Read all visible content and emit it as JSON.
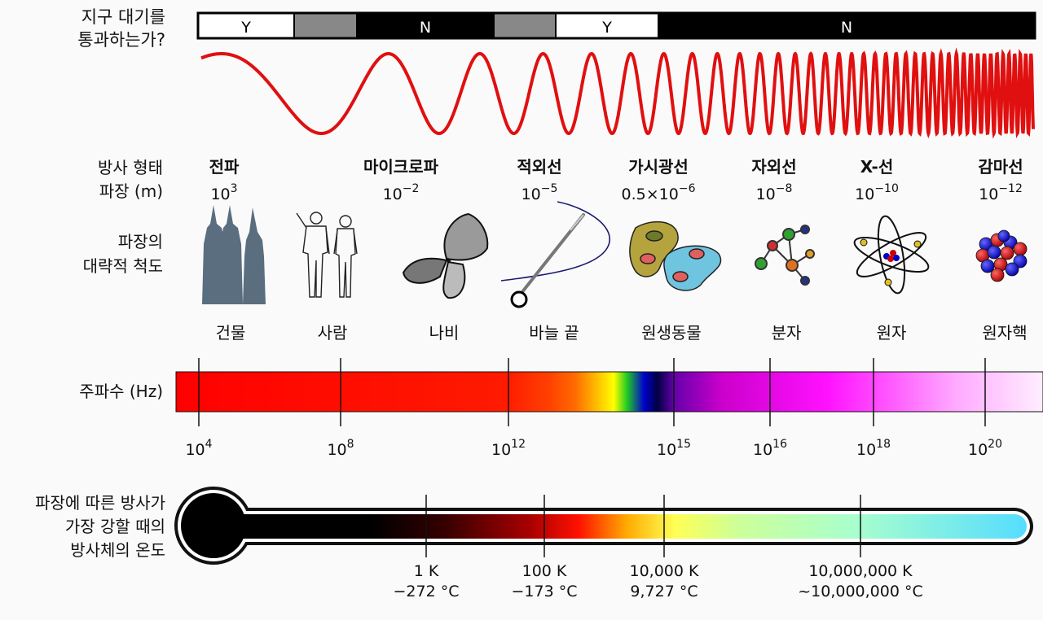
{
  "atmosphere": {
    "label_line1": "지구 대기를",
    "label_line2": "통과하는가?",
    "segments": [
      {
        "label": "Y",
        "fill": "#ffffff",
        "text": "#000000"
      },
      {
        "label": "",
        "fill": "#888888",
        "text": "#000000"
      },
      {
        "label": "N",
        "fill": "#000000",
        "text": "#ffffff"
      },
      {
        "label": "",
        "fill": "#888888",
        "text": "#000000"
      },
      {
        "label": "Y",
        "fill": "#ffffff",
        "text": "#000000"
      },
      {
        "label": "N",
        "fill": "#000000",
        "text": "#ffffff"
      }
    ]
  },
  "wave": {
    "color": "#e01010"
  },
  "radiation": {
    "label_type": "방사 형태",
    "label_wavelength": "파장 (m)",
    "types": [
      {
        "name": "전파",
        "base": "10",
        "exp": "3"
      },
      {
        "name": "마이크로파",
        "base": "10",
        "exp": "−2"
      },
      {
        "name": "적외선",
        "base": "10",
        "exp": "−5"
      },
      {
        "name": "가시광선",
        "base": "0.5×10",
        "exp": "−6"
      },
      {
        "name": "자외선",
        "base": "10",
        "exp": "−8"
      },
      {
        "name": "X-선",
        "base": "10",
        "exp": "−10"
      },
      {
        "name": "감마선",
        "base": "10",
        "exp": "−12"
      }
    ]
  },
  "scale": {
    "label_line1": "파장의",
    "label_line2": "대략적 척도",
    "items": [
      {
        "label": "건물",
        "icon": "building-icon"
      },
      {
        "label": "사람",
        "icon": "humans-icon"
      },
      {
        "label": "나비",
        "icon": "butterfly-icon"
      },
      {
        "label": "바늘 끝",
        "icon": "needle-icon"
      },
      {
        "label": "원생동물",
        "icon": "protozoa-icon"
      },
      {
        "label": "분자",
        "icon": "molecule-icon"
      },
      {
        "label": "원자",
        "icon": "atom-icon"
      },
      {
        "label": "원자핵",
        "icon": "nucleus-icon"
      }
    ]
  },
  "frequency": {
    "label": "주파수 (Hz)",
    "ticks": [
      {
        "base": "10",
        "exp": "4"
      },
      {
        "base": "10",
        "exp": "8"
      },
      {
        "base": "10",
        "exp": "12"
      },
      {
        "base": "10",
        "exp": "15"
      },
      {
        "base": "10",
        "exp": "16"
      },
      {
        "base": "10",
        "exp": "18"
      },
      {
        "base": "10",
        "exp": "20"
      }
    ]
  },
  "temperature": {
    "label_line1": "파장에 따른 방사가",
    "label_line2": "가장 강할 때의",
    "label_line3": "방사체의 온도",
    "ticks": [
      {
        "kelvin": "1 K",
        "celsius": "−272 °C"
      },
      {
        "kelvin": "100 K",
        "celsius": "−173 °C"
      },
      {
        "kelvin": "10,000 K",
        "celsius": "9,727 °C"
      },
      {
        "kelvin": "10,000,000 K",
        "celsius": "~10,000,000 °C"
      }
    ]
  }
}
